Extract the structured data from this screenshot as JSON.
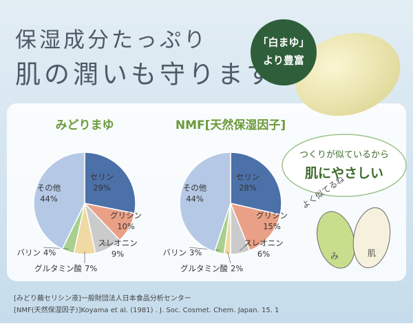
{
  "header": {
    "line1": "保湿成分たっぷり",
    "line2": "肌の潤いも守ります"
  },
  "badge": {
    "line1": "「白まゆ」",
    "line2": "より豊富"
  },
  "bubble": {
    "line1": "つくりが似ているから",
    "line2": "肌にやさしい"
  },
  "illustration": {
    "caption": "よく似てるね",
    "left_char": "み",
    "right_char": "肌"
  },
  "chart_data": [
    {
      "type": "pie",
      "title": "みどりまゆ",
      "categories": [
        "セリン",
        "グリシン",
        "スレオニン",
        "グルタミン酸",
        "バリン",
        "その他"
      ],
      "values": [
        29,
        10,
        9,
        7,
        4,
        44
      ],
      "value_labels": [
        "29%",
        "10%",
        "9%",
        "7%",
        "4%",
        "44%"
      ],
      "colors": [
        "#4c70a8",
        "#e9a087",
        "#cbcbcb",
        "#f0d9a2",
        "#a9d08e",
        "#b5c9e6"
      ]
    },
    {
      "type": "pie",
      "title": "NMF[天然保湿因子]",
      "categories": [
        "セリン",
        "グリシン",
        "スレオニン",
        "グルタミン酸",
        "バリン",
        "その他"
      ],
      "values": [
        28,
        15,
        6,
        2,
        3,
        44
      ],
      "value_labels": [
        "28%",
        "15%",
        "6%",
        "2%",
        "3%",
        "44%"
      ],
      "colors": [
        "#4c70a8",
        "#e9a087",
        "#cbcbcb",
        "#f0d9a2",
        "#a9d08e",
        "#b5c9e6"
      ]
    }
  ],
  "footnotes": [
    "[みどり繭セリシン液]一般財団法人日本食品分析センター",
    "[NMF(天然保湿因子)]Koyama et al. (1981) . J. Soc. Cosmet. Chem. Japan. 15. 1"
  ]
}
